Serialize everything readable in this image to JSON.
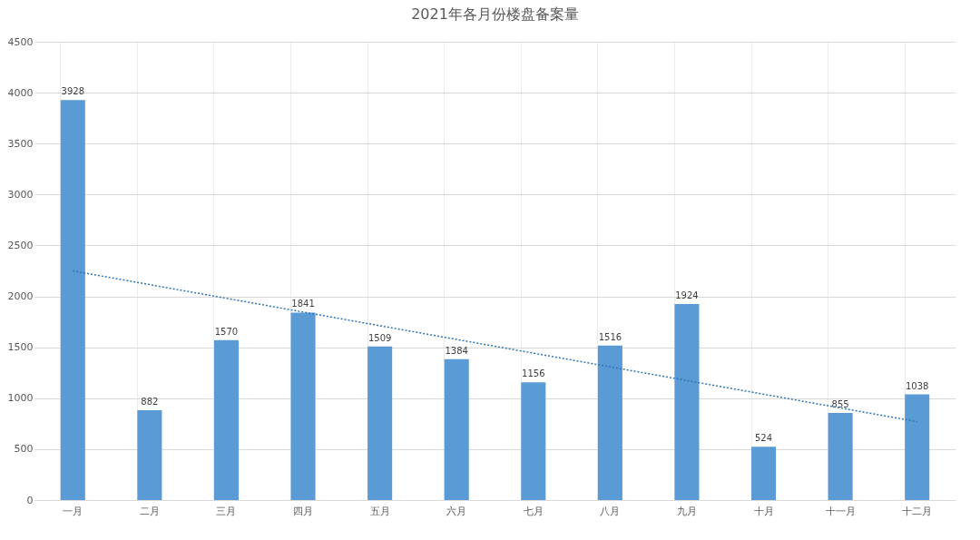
{
  "chart_data": {
    "type": "bar",
    "title": "2021年各月份楼盘备案量",
    "categories": [
      "一月",
      "二月",
      "三月",
      "四月",
      "五月",
      "六月",
      "七月",
      "八月",
      "九月",
      "十月",
      "十一月",
      "十二月"
    ],
    "series": [
      {
        "color": "#5b9bd5",
        "values": [
          3928,
          882,
          1570,
          1841,
          1509,
          1384,
          1156,
          1516,
          1924,
          524,
          855,
          1038
        ],
        "value_labels": [
          "3928",
          "882",
          "1570",
          "1841",
          "1509",
          "1384",
          "1156",
          "1516",
          "1924",
          "524",
          "855",
          "1038"
        ]
      },
      {
        "type": "line",
        "color": "#2e75b6",
        "line_style": "dotted",
        "x": [
          "一月",
          "十二月"
        ],
        "values": [
          2250,
          770
        ]
      }
    ],
    "ylim": [
      0,
      4500
    ],
    "yticks": [
      0,
      500,
      1000,
      1500,
      2000,
      2500,
      3000,
      3500,
      4000,
      4500
    ],
    "grid": true
  }
}
